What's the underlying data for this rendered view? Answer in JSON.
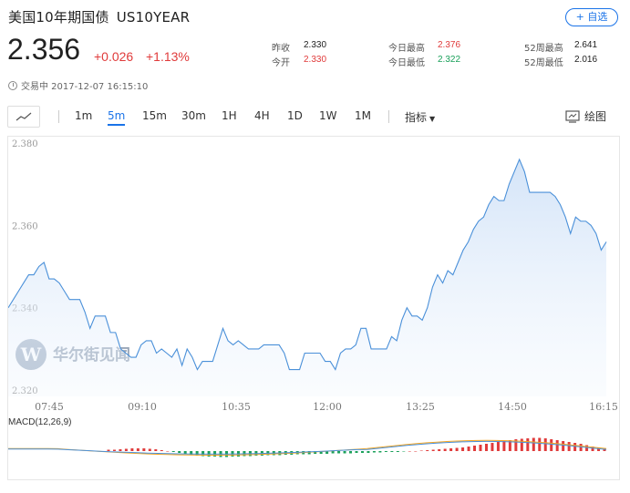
{
  "header": {
    "name": "美国10年期国债",
    "code": "US10YEAR",
    "watch_label": "+ 自选"
  },
  "quote": {
    "price": "2.356",
    "change": "+0.026",
    "change_pct": "+1.13%",
    "time": "交易中 2017-12-07 16:15:10"
  },
  "stats": [
    {
      "label": "昨收",
      "value": "2.330",
      "color": "#222222"
    },
    {
      "label": "今开",
      "value": "2.330",
      "color": "#e03b3b"
    },
    {
      "label": "今日最高",
      "value": "2.376",
      "color": "#e03b3b"
    },
    {
      "label": "今日最低",
      "value": "2.322",
      "color": "#1aa05a"
    },
    {
      "label": "52周最高",
      "value": "2.641",
      "color": "#222222"
    },
    {
      "label": "52周最低",
      "value": "2.016",
      "color": "#222222"
    }
  ],
  "toolbar": {
    "periods": [
      "1m",
      "5m",
      "15m",
      "30m",
      "1H",
      "4H",
      "1D",
      "1W",
      "1M"
    ],
    "active": "5m",
    "indicator_label": "指标",
    "draw_label": "绘图"
  },
  "watermark": "华尔街见闻",
  "colors": {
    "accent": "#1a73e8",
    "up": "#e03b3b",
    "down": "#1aa05a",
    "line": "#4a90d9"
  },
  "chart_data": {
    "type": "area",
    "x_tick_labels": [
      "07:45",
      "09:10",
      "10:35",
      "12:00",
      "13:25",
      "14:50",
      "16:15"
    ],
    "y_tick_labels": [
      "2.380",
      "2.360",
      "2.340",
      "2.320"
    ],
    "ylim": [
      2.3185,
      2.3815
    ],
    "series": [
      {
        "values": [
          2.34,
          2.342,
          2.344,
          2.346,
          2.348,
          2.348,
          2.35,
          2.351,
          2.347,
          2.347,
          2.346,
          2.344,
          2.342,
          2.342,
          2.342,
          2.339,
          2.335,
          2.338,
          2.338,
          2.338,
          2.334,
          2.334,
          2.33,
          2.329,
          2.328,
          2.328,
          2.331,
          2.332,
          2.332,
          2.329,
          2.33,
          2.329,
          2.328,
          2.33,
          2.326,
          2.33,
          2.328,
          2.325,
          2.327,
          2.327,
          2.327,
          2.331,
          2.335,
          2.332,
          2.331,
          2.332,
          2.331,
          2.33,
          2.33,
          2.33,
          2.331,
          2.331,
          2.331,
          2.331,
          2.329,
          2.325,
          2.325,
          2.325,
          2.329,
          2.329,
          2.329,
          2.329,
          2.327,
          2.327,
          2.325,
          2.329,
          2.33,
          2.33,
          2.331,
          2.335,
          2.335,
          2.33,
          2.33,
          2.33,
          2.33,
          2.333,
          2.332,
          2.337,
          2.34,
          2.338,
          2.338,
          2.337,
          2.34,
          2.345,
          2.348,
          2.346,
          2.349,
          2.348,
          2.351,
          2.354,
          2.356,
          2.359,
          2.361,
          2.362,
          2.365,
          2.367,
          2.366,
          2.366,
          2.37,
          2.373,
          2.376,
          2.373,
          2.368,
          2.368,
          2.368,
          2.368,
          2.368,
          2.367,
          2.365,
          2.362,
          2.358,
          2.362,
          2.361,
          2.361,
          2.36,
          2.358,
          2.354,
          2.356
        ]
      }
    ],
    "macd": {
      "label": "MACD(12,26,9)",
      "histogram": [
        0.3,
        0.3,
        0.4,
        0.5,
        0.6,
        0.6,
        0.6,
        0.5,
        0.4,
        0.2,
        0.0,
        -0.2,
        -0.4,
        -0.6,
        -0.8,
        -1.0,
        -1.1,
        -1.2,
        -1.2,
        -1.3,
        -1.3,
        -1.2,
        -1.2,
        -1.1,
        -1.1,
        -1.0,
        -1.0,
        -0.9,
        -0.9,
        -0.9,
        -0.8,
        -0.8,
        -0.7,
        -0.7,
        -0.7,
        -0.6,
        -0.6,
        -0.6,
        -0.5,
        -0.5,
        -0.5,
        -0.5,
        -0.4,
        -0.4,
        -0.4,
        -0.3,
        -0.3,
        -0.2,
        -0.2,
        -0.2,
        -0.1,
        0.0,
        0.0,
        0.1,
        0.2,
        0.3,
        0.4,
        0.5,
        0.6,
        0.7,
        0.8,
        1.0,
        1.2,
        1.4,
        1.6,
        1.8,
        2.0,
        2.2,
        2.4,
        2.6,
        2.7,
        2.8,
        2.9,
        2.9,
        2.8,
        2.6,
        2.4,
        2.2,
        2.0,
        1.8,
        1.6,
        1.3,
        1.0,
        0.7,
        0.5
      ]
    }
  }
}
